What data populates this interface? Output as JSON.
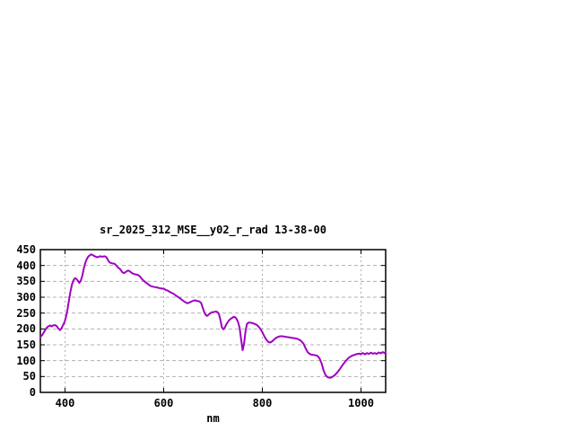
{
  "window": {
    "background_color": "#ffffff"
  },
  "chart_data": {
    "type": "line",
    "title": "sr_2025_312_MSE__y02_r_rad 13-38-00",
    "xlabel": "nm",
    "ylabel": "",
    "xlim": [
      350,
      1050
    ],
    "ylim": [
      0,
      450
    ],
    "x_ticks": [
      400,
      600,
      800,
      1000
    ],
    "y_ticks": [
      0,
      50,
      100,
      150,
      200,
      250,
      300,
      350,
      400,
      450
    ],
    "grid": true,
    "legend_position": "none",
    "line_color": "#a000c0",
    "grid_color": "#b0b0b0",
    "border_color": "#000000",
    "text_color": "#000000",
    "series": [
      {
        "name": "",
        "points": [
          [
            350,
            175
          ],
          [
            354,
            181
          ],
          [
            358,
            192
          ],
          [
            362,
            202
          ],
          [
            366,
            208
          ],
          [
            370,
            211
          ],
          [
            373,
            208
          ],
          [
            376,
            211
          ],
          [
            380,
            212
          ],
          [
            383,
            209
          ],
          [
            386,
            202
          ],
          [
            390,
            196
          ],
          [
            393,
            203
          ],
          [
            396,
            212
          ],
          [
            399,
            222
          ],
          [
            402,
            238
          ],
          [
            405,
            262
          ],
          [
            408,
            290
          ],
          [
            411,
            318
          ],
          [
            414,
            340
          ],
          [
            417,
            353
          ],
          [
            420,
            360
          ],
          [
            423,
            358
          ],
          [
            426,
            352
          ],
          [
            429,
            345
          ],
          [
            432,
            352
          ],
          [
            435,
            368
          ],
          [
            438,
            390
          ],
          [
            441,
            408
          ],
          [
            444,
            420
          ],
          [
            447,
            428
          ],
          [
            450,
            432
          ],
          [
            453,
            435
          ],
          [
            456,
            433
          ],
          [
            459,
            430
          ],
          [
            462,
            428
          ],
          [
            465,
            426
          ],
          [
            468,
            427
          ],
          [
            471,
            429
          ],
          [
            474,
            428
          ],
          [
            477,
            428
          ],
          [
            480,
            429
          ],
          [
            483,
            427
          ],
          [
            486,
            420
          ],
          [
            489,
            412
          ],
          [
            492,
            408
          ],
          [
            495,
            407
          ],
          [
            498,
            406
          ],
          [
            501,
            405
          ],
          [
            504,
            400
          ],
          [
            507,
            394
          ],
          [
            510,
            391
          ],
          [
            513,
            386
          ],
          [
            516,
            379
          ],
          [
            519,
            376
          ],
          [
            522,
            378
          ],
          [
            525,
            382
          ],
          [
            528,
            384
          ],
          [
            531,
            382
          ],
          [
            534,
            378
          ],
          [
            537,
            375
          ],
          [
            540,
            373
          ],
          [
            543,
            372
          ],
          [
            546,
            371
          ],
          [
            549,
            369
          ],
          [
            552,
            365
          ],
          [
            555,
            359
          ],
          [
            558,
            354
          ],
          [
            561,
            350
          ],
          [
            564,
            346
          ],
          [
            567,
            343
          ],
          [
            570,
            339
          ],
          [
            573,
            336
          ],
          [
            576,
            334
          ],
          [
            579,
            333
          ],
          [
            582,
            332
          ],
          [
            585,
            331
          ],
          [
            588,
            330
          ],
          [
            591,
            329
          ],
          [
            594,
            328
          ],
          [
            597,
            327
          ],
          [
            600,
            327
          ],
          [
            604,
            323
          ],
          [
            608,
            321
          ],
          [
            612,
            317
          ],
          [
            616,
            314
          ],
          [
            620,
            311
          ],
          [
            624,
            306
          ],
          [
            628,
            302
          ],
          [
            632,
            298
          ],
          [
            636,
            293
          ],
          [
            640,
            288
          ],
          [
            644,
            284
          ],
          [
            648,
            281
          ],
          [
            652,
            283
          ],
          [
            656,
            286
          ],
          [
            660,
            289
          ],
          [
            664,
            290
          ],
          [
            668,
            288
          ],
          [
            672,
            287
          ],
          [
            676,
            282
          ],
          [
            679,
            268
          ],
          [
            682,
            254
          ],
          [
            685,
            244
          ],
          [
            688,
            241
          ],
          [
            691,
            245
          ],
          [
            694,
            249
          ],
          [
            697,
            252
          ],
          [
            700,
            253
          ],
          [
            703,
            254
          ],
          [
            706,
            255
          ],
          [
            709,
            253
          ],
          [
            712,
            247
          ],
          [
            715,
            228
          ],
          [
            718,
            205
          ],
          [
            721,
            199
          ],
          [
            724,
            205
          ],
          [
            727,
            214
          ],
          [
            730,
            222
          ],
          [
            733,
            228
          ],
          [
            736,
            232
          ],
          [
            739,
            235
          ],
          [
            742,
            238
          ],
          [
            745,
            237
          ],
          [
            748,
            231
          ],
          [
            751,
            221
          ],
          [
            754,
            203
          ],
          [
            757,
            168
          ],
          [
            760,
            133
          ],
          [
            763,
            153
          ],
          [
            766,
            193
          ],
          [
            769,
            216
          ],
          [
            772,
            220
          ],
          [
            775,
            220
          ],
          [
            778,
            219
          ],
          [
            781,
            218
          ],
          [
            784,
            216
          ],
          [
            787,
            214
          ],
          [
            790,
            211
          ],
          [
            793,
            206
          ],
          [
            796,
            200
          ],
          [
            800,
            190
          ],
          [
            804,
            177
          ],
          [
            808,
            166
          ],
          [
            812,
            159
          ],
          [
            816,
            157
          ],
          [
            820,
            161
          ],
          [
            824,
            167
          ],
          [
            828,
            172
          ],
          [
            832,
            175
          ],
          [
            836,
            177
          ],
          [
            840,
            177
          ],
          [
            844,
            176
          ],
          [
            848,
            175
          ],
          [
            852,
            174
          ],
          [
            856,
            173
          ],
          [
            860,
            172
          ],
          [
            864,
            171
          ],
          [
            868,
            170
          ],
          [
            872,
            168
          ],
          [
            876,
            165
          ],
          [
            880,
            160
          ],
          [
            884,
            152
          ],
          [
            888,
            138
          ],
          [
            892,
            127
          ],
          [
            896,
            121
          ],
          [
            900,
            119
          ],
          [
            904,
            118
          ],
          [
            908,
            117
          ],
          [
            912,
            115
          ],
          [
            916,
            107
          ],
          [
            920,
            92
          ],
          [
            924,
            70
          ],
          [
            928,
            55
          ],
          [
            932,
            48
          ],
          [
            936,
            46
          ],
          [
            940,
            47
          ],
          [
            944,
            51
          ],
          [
            948,
            56
          ],
          [
            952,
            63
          ],
          [
            956,
            71
          ],
          [
            960,
            80
          ],
          [
            964,
            89
          ],
          [
            968,
            97
          ],
          [
            972,
            104
          ],
          [
            976,
            110
          ],
          [
            980,
            114
          ],
          [
            984,
            117
          ],
          [
            988,
            119
          ],
          [
            992,
            121
          ],
          [
            996,
            122
          ],
          [
            1000,
            121
          ],
          [
            1004,
            124
          ],
          [
            1008,
            120
          ],
          [
            1012,
            124
          ],
          [
            1016,
            121
          ],
          [
            1020,
            125
          ],
          [
            1024,
            122
          ],
          [
            1028,
            124
          ],
          [
            1032,
            121
          ],
          [
            1036,
            126
          ],
          [
            1040,
            123
          ],
          [
            1044,
            127
          ],
          [
            1048,
            124
          ],
          [
            1050,
            127
          ]
        ]
      }
    ]
  }
}
